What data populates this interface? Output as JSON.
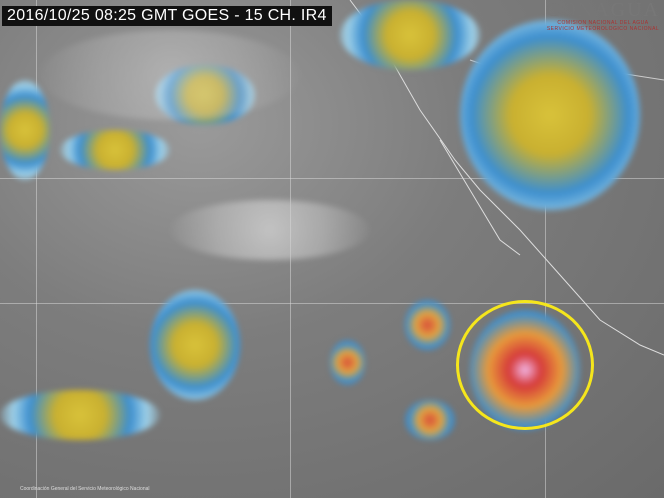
{
  "title": "2016/10/25 08:25 GMT GOES - 15 CH. IR4",
  "logo": {
    "name": "CONAGUA",
    "line1": "COMISION NACIONAL DEL AGUA",
    "line2": "SERVICIO METEOROLOGICO NACIONAL"
  },
  "credit": "Coordinación General del Servicio Meteorológico Nacional",
  "colors": {
    "highlight_circle": "#f5e61c",
    "background": "#7d7d7d"
  }
}
